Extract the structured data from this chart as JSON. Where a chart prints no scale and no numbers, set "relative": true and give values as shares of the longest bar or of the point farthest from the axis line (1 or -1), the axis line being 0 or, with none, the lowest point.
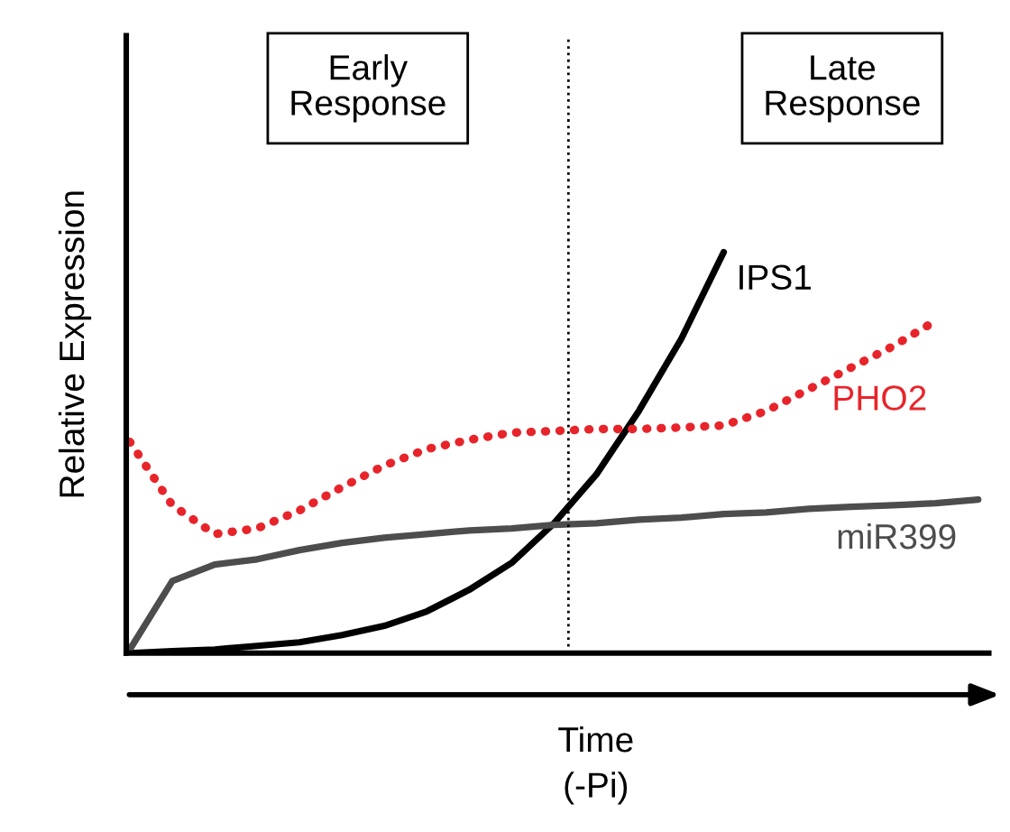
{
  "chart_data": {
    "type": "line",
    "relative": true,
    "xlabel": "Time\n(-Pi)",
    "ylabel": "Relative Expression",
    "categories": [
      null,
      null,
      null,
      null,
      null,
      null,
      null,
      null,
      null,
      null,
      null,
      null,
      null,
      null,
      null,
      null,
      null,
      null,
      null,
      null,
      null
    ],
    "series": [
      {
        "name": "IPS1",
        "color": "#000000",
        "line_style": "solid",
        "values": [
          0,
          0.005,
          0.009,
          0.018,
          0.027,
          0.045,
          0.068,
          0.104,
          0.158,
          0.225,
          0.324,
          0.446,
          0.604,
          0.784,
          1.0,
          null,
          null,
          null,
          null,
          null,
          null
        ]
      },
      {
        "name": "PHO2",
        "color": "#e8242b",
        "line_style": "dotted",
        "values": [
          0.527,
          0.369,
          0.297,
          0.311,
          0.356,
          0.414,
          0.468,
          0.509,
          0.532,
          0.55,
          0.554,
          0.559,
          0.559,
          0.563,
          0.568,
          0.604,
          0.658,
          0.712,
          0.766,
          0.829,
          null
        ]
      },
      {
        "name": "miR399",
        "color": "#4d4d4d",
        "line_style": "solid",
        "values": [
          0.009,
          0.18,
          0.221,
          0.234,
          0.257,
          0.275,
          0.288,
          0.297,
          0.306,
          0.311,
          0.32,
          0.324,
          0.333,
          0.338,
          0.347,
          0.351,
          0.36,
          0.365,
          0.369,
          0.374,
          0.383
        ]
      }
    ],
    "annotations": [
      "Early\nResponse",
      "Late\nResponse"
    ],
    "marker": "none",
    "legend": false
  }
}
